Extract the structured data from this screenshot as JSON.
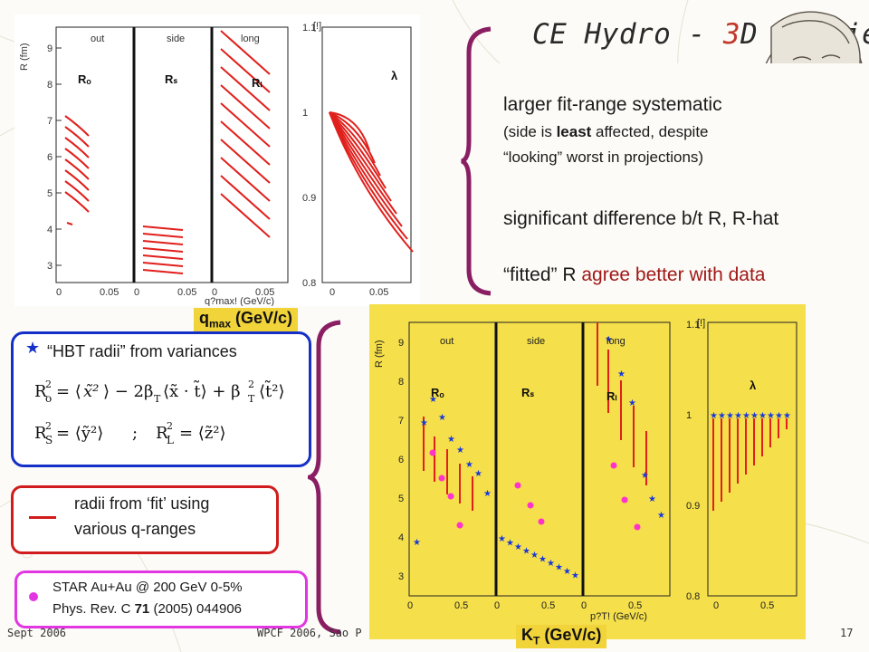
{
  "slide": {
    "title_prefix": "CE Hydro - ",
    "title_accent": "3",
    "title_suffix": "D studies",
    "bullets": {
      "line1": "larger fit-range systematic",
      "line2": "(side is least affected, despite",
      "line3": "“looking” worst in projections)",
      "line4": "significant difference b/t R, R-hat",
      "line5_pre": "“fitted” R ",
      "line5_red": "agree better with data"
    },
    "top_chart_axis_label": "q",
    "top_chart_axis_sub": "max",
    "top_chart_axis_unit": " (GeV/c)",
    "bottom_chart_axis_label": "K",
    "bottom_chart_axis_sub": "T",
    "bottom_chart_axis_unit": " (GeV/c)",
    "hbt_box": {
      "star": "★",
      "heading": "“HBT radii” from variances"
    },
    "fit_box": {
      "line1": "radii from ‘fit’ using",
      "line2": "various q-ranges"
    },
    "star_box": {
      "line1": "STAR Au+Au @ 200 GeV 0-5%",
      "line2": "Phys. Rev. C 71 (2005) 044906"
    },
    "footer": {
      "left": "Sept 2006",
      "center": "WPCF 2006, Sao P",
      "page": "17"
    }
  },
  "top_chart": {
    "panels": [
      "out",
      "side",
      "long"
    ],
    "panel_labels": [
      "Rₒ",
      "Rₛ",
      "Rₗ",
      "λ"
    ],
    "y_axis_label": "R (fm)",
    "y_ticks": [
      "3",
      "4",
      "5",
      "6",
      "7",
      "8",
      "9"
    ],
    "x_ticks": [
      "0",
      "0.05",
      "0",
      "0.05",
      "0",
      "0.05"
    ],
    "x_axis_text": "q?max! (GeV/c)",
    "lambda_y_ticks": [
      "0.8",
      "0.9",
      "1",
      "1.1"
    ],
    "lambda_x_ticks": [
      "0",
      "0.05"
    ],
    "lambda_y_label": "[!]"
  },
  "bottom_chart": {
    "panels": [
      "out",
      "side",
      "long"
    ],
    "panel_labels": [
      "Rₒ",
      "Rₛ",
      "Rₗ",
      "λ"
    ],
    "y_axis_label": "R (fm)",
    "y_ticks": [
      "3",
      "4",
      "5",
      "6",
      "7",
      "8",
      "9"
    ],
    "x_ticks": [
      "0",
      "0.5",
      "0",
      "0.5",
      "0",
      "0.5"
    ],
    "x_axis_text": "p?T! (GeV/c)",
    "lambda_y_ticks": [
      "0.8",
      "0.9",
      "1",
      "1.1"
    ],
    "lambda_x_ticks": [
      "0",
      "0.5"
    ],
    "lambda_y_label": "[!]"
  }
}
